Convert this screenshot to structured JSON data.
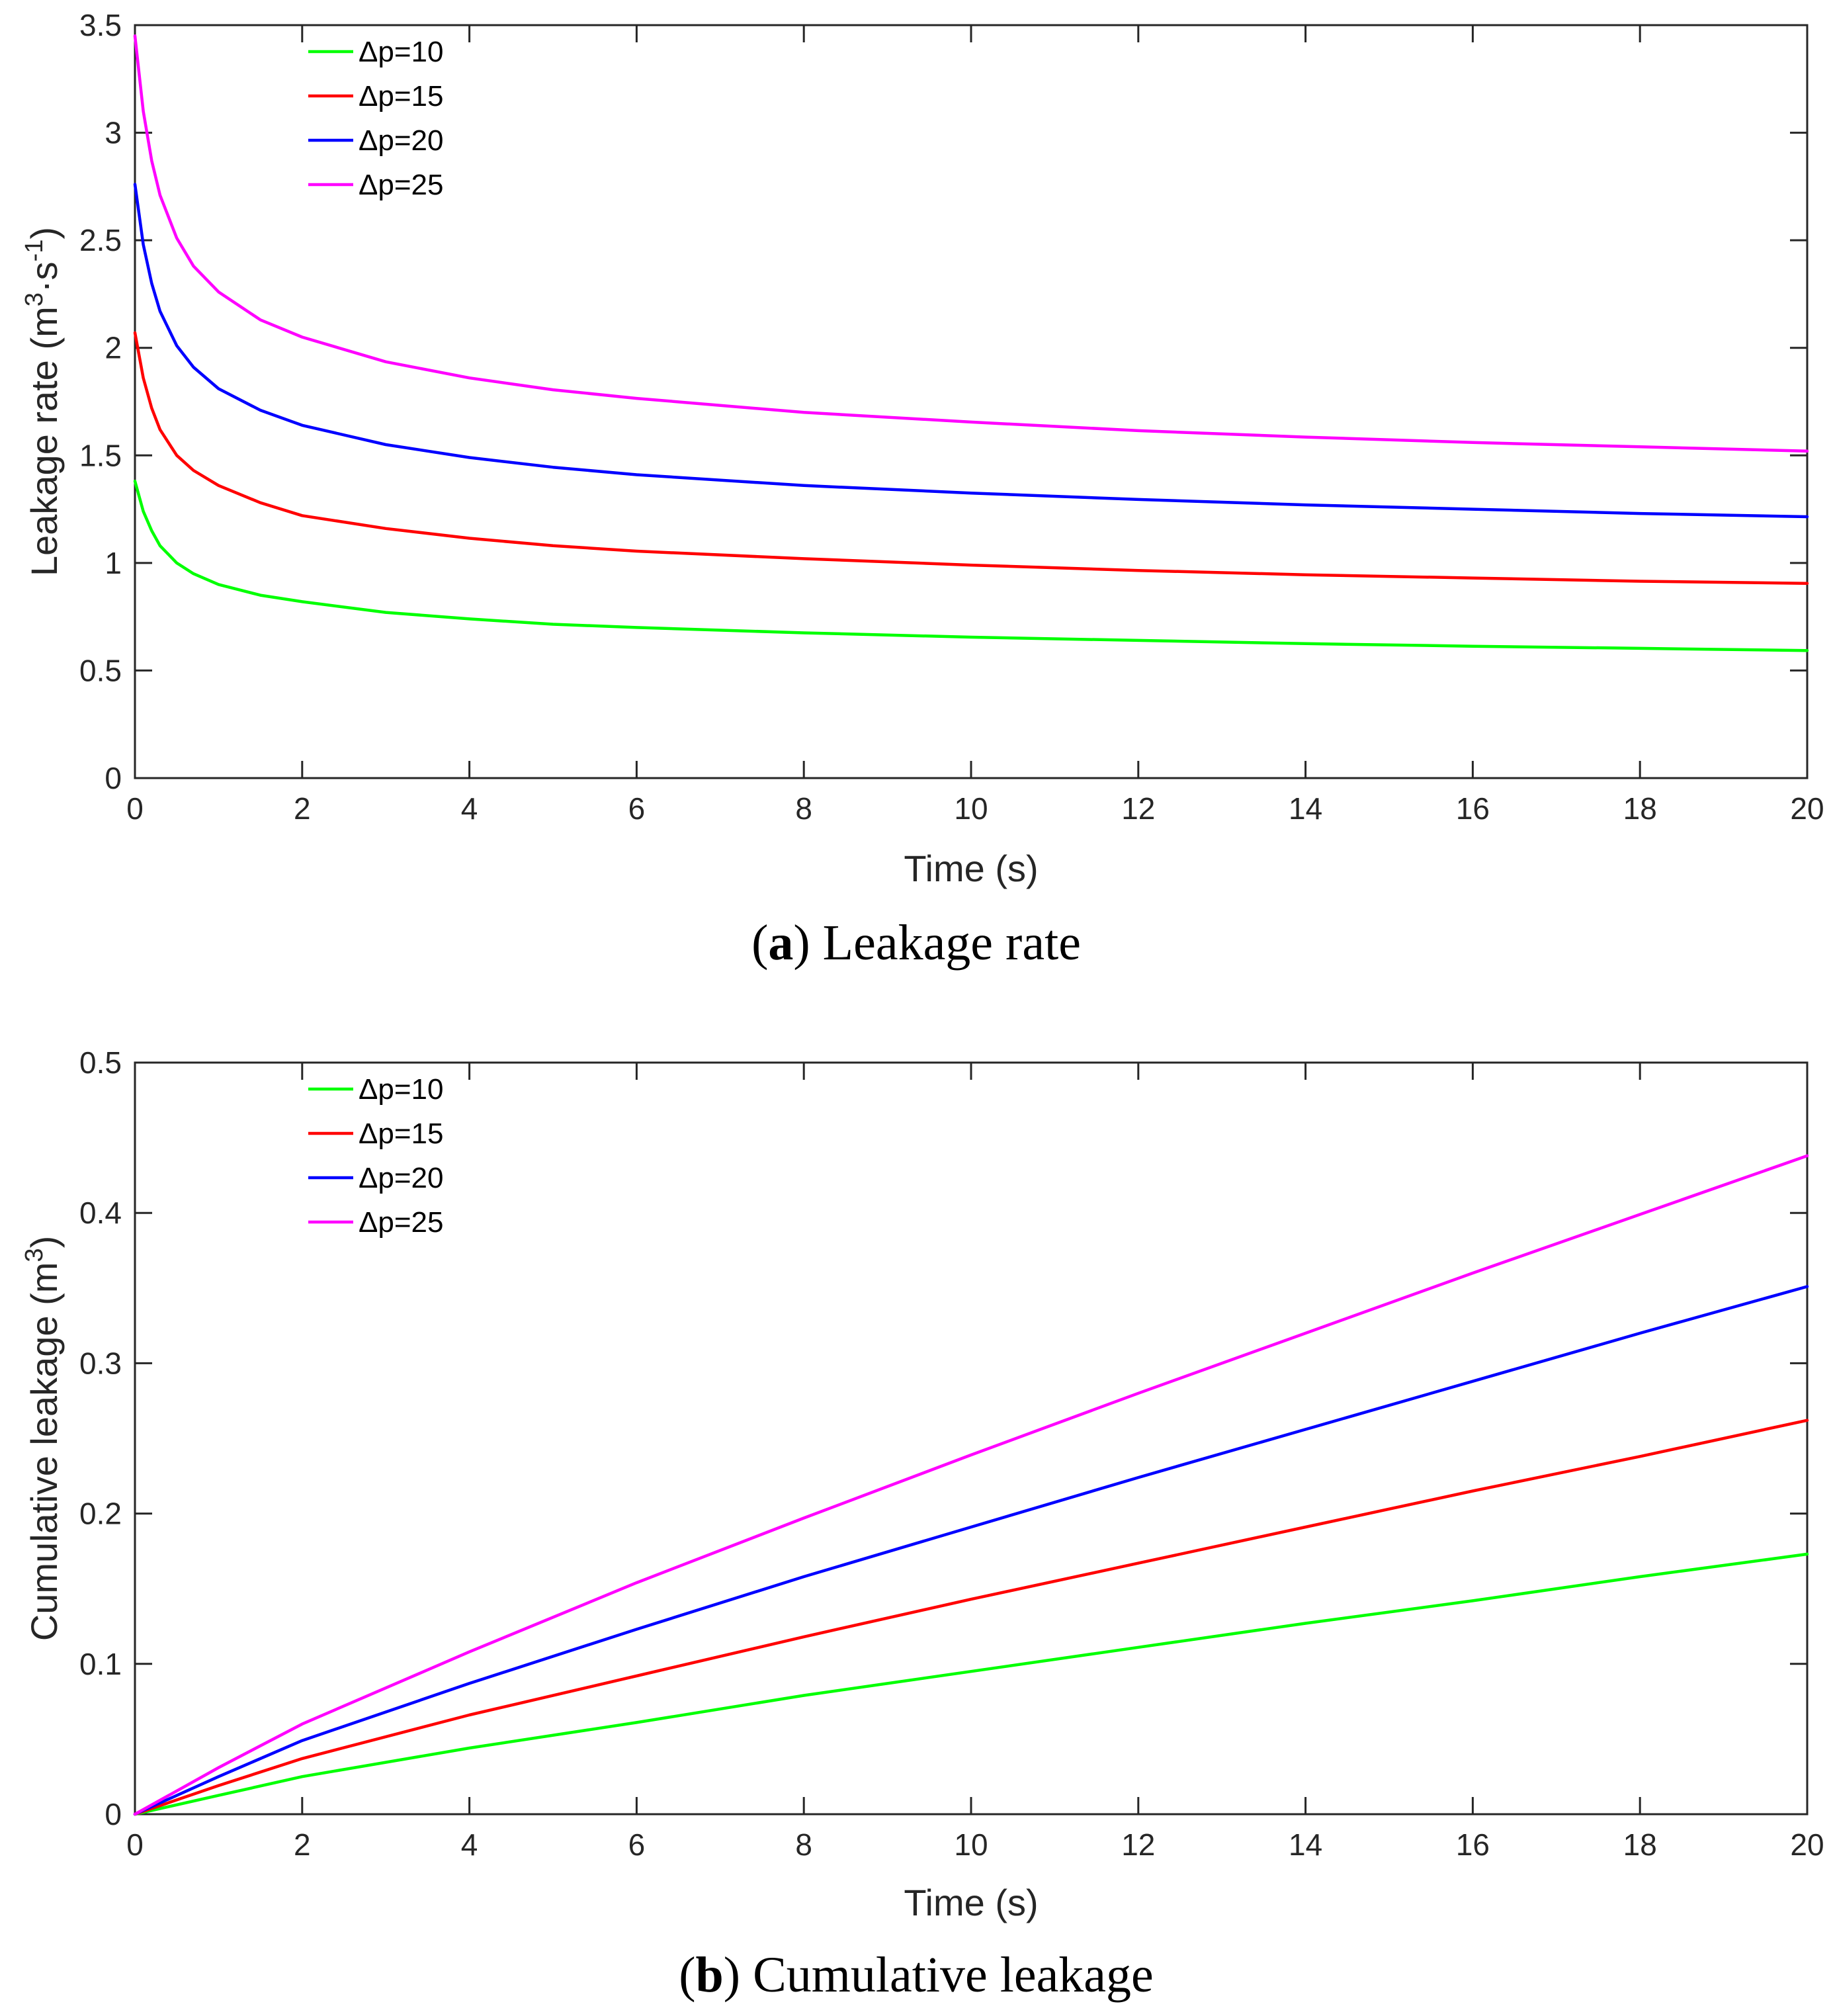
{
  "colors": {
    "green": "#00ff00",
    "red": "#ff0000",
    "blue": "#0000ff",
    "magenta": "#ff00ff"
  },
  "chart_data": [
    {
      "type": "line",
      "panel": "a",
      "caption_letter": "a",
      "caption_text": ") Leakage rate",
      "xlabel": "Time (s)",
      "ylabel_main": "Leakage rate (m",
      "ylabel_sup1": "3",
      "ylabel_mid": "·s",
      "ylabel_sup2": "-1",
      "ylabel_end": ")",
      "xlim": [
        0,
        20
      ],
      "ylim": [
        0,
        3.5
      ],
      "xticks": [
        0,
        2,
        4,
        6,
        8,
        10,
        12,
        14,
        16,
        18,
        20
      ],
      "xtick_labels": [
        "0",
        "2",
        "4",
        "6",
        "8",
        "10",
        "12",
        "14",
        "16",
        "18",
        "20"
      ],
      "yticks": [
        0,
        0.5,
        1,
        1.5,
        2,
        2.5,
        3,
        3.5
      ],
      "ytick_labels": [
        "0",
        "0.5",
        "1",
        "1.5",
        "2",
        "2.5",
        "3",
        "3.5"
      ],
      "legend_position": "top-left",
      "x": [
        0,
        0.1,
        0.2,
        0.3,
        0.5,
        0.7,
        1,
        1.5,
        2,
        3,
        4,
        5,
        6,
        8,
        10,
        12,
        14,
        16,
        18,
        20
      ],
      "series": [
        {
          "name": "Δp=10",
          "color": "green",
          "values": [
            1.38,
            1.24,
            1.15,
            1.08,
            1.0,
            0.95,
            0.9,
            0.85,
            0.82,
            0.77,
            0.74,
            0.715,
            0.7,
            0.675,
            0.655,
            0.64,
            0.625,
            0.613,
            0.603,
            0.593
          ]
        },
        {
          "name": "Δp=15",
          "color": "red",
          "values": [
            2.07,
            1.86,
            1.72,
            1.62,
            1.5,
            1.43,
            1.36,
            1.28,
            1.22,
            1.16,
            1.115,
            1.08,
            1.055,
            1.02,
            0.99,
            0.965,
            0.945,
            0.93,
            0.915,
            0.905
          ]
        },
        {
          "name": "Δp=20",
          "color": "blue",
          "values": [
            2.76,
            2.48,
            2.3,
            2.17,
            2.01,
            1.91,
            1.81,
            1.71,
            1.64,
            1.55,
            1.49,
            1.445,
            1.41,
            1.36,
            1.325,
            1.295,
            1.27,
            1.25,
            1.23,
            1.215
          ]
        },
        {
          "name": "Δp=25",
          "color": "magenta",
          "values": [
            3.45,
            3.1,
            2.87,
            2.71,
            2.51,
            2.38,
            2.26,
            2.13,
            2.05,
            1.935,
            1.86,
            1.805,
            1.765,
            1.7,
            1.655,
            1.615,
            1.585,
            1.56,
            1.54,
            1.52
          ]
        }
      ]
    },
    {
      "type": "line",
      "panel": "b",
      "caption_letter": "b",
      "caption_text": ") Cumulative leakage",
      "xlabel": "Time (s)",
      "ylabel_main": "Cumulative leakage (m",
      "ylabel_sup1": "3",
      "ylabel_end": ")",
      "xlim": [
        0,
        20
      ],
      "ylim": [
        0,
        0.5
      ],
      "xticks": [
        0,
        2,
        4,
        6,
        8,
        10,
        12,
        14,
        16,
        18,
        20
      ],
      "xtick_labels": [
        "0",
        "2",
        "4",
        "6",
        "8",
        "10",
        "12",
        "14",
        "16",
        "18",
        "20"
      ],
      "yticks": [
        0,
        0.1,
        0.2,
        0.3,
        0.4,
        0.5
      ],
      "ytick_labels": [
        "0",
        "0.1",
        "0.2",
        "0.3",
        "0.4",
        "0.5"
      ],
      "legend_position": "top-left",
      "x": [
        0,
        1,
        2,
        4,
        6,
        8,
        10,
        12,
        14,
        16,
        18,
        20
      ],
      "series": [
        {
          "name": "Δp=10",
          "color": "green",
          "values": [
            0,
            0.0125,
            0.025,
            0.044,
            0.061,
            0.079,
            0.095,
            0.111,
            0.127,
            0.142,
            0.158,
            0.173
          ]
        },
        {
          "name": "Δp=15",
          "color": "red",
          "values": [
            0,
            0.019,
            0.037,
            0.066,
            0.092,
            0.118,
            0.143,
            0.167,
            0.191,
            0.215,
            0.238,
            0.262
          ]
        },
        {
          "name": "Δp=20",
          "color": "blue",
          "values": [
            0,
            0.025,
            0.049,
            0.087,
            0.123,
            0.158,
            0.191,
            0.224,
            0.256,
            0.288,
            0.32,
            0.351
          ]
        },
        {
          "name": "Δp=25",
          "color": "magenta",
          "values": [
            0,
            0.031,
            0.06,
            0.108,
            0.154,
            0.197,
            0.239,
            0.28,
            0.32,
            0.36,
            0.399,
            0.438
          ]
        }
      ]
    }
  ]
}
